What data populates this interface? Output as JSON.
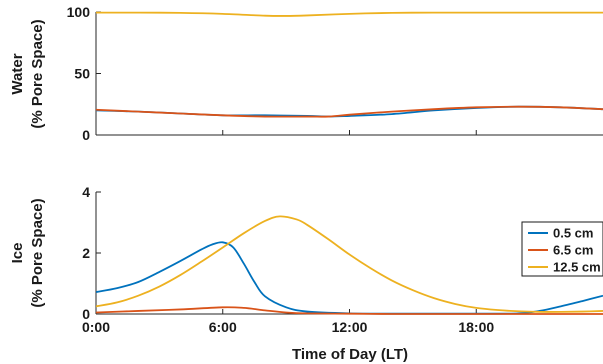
{
  "chart_data": [
    {
      "type": "line",
      "ylabel_line1": "Water",
      "ylabel_line2": "(% Pore Space)",
      "ylim": [
        0,
        100
      ],
      "xlim": [
        0,
        24
      ],
      "yticks": [
        {
          "value": 0,
          "label": "0"
        },
        {
          "value": 50,
          "label": "50"
        },
        {
          "value": 100,
          "label": "100"
        }
      ],
      "series": [
        {
          "key": "s1",
          "color": "#0072BD",
          "x": [
            0,
            2,
            4,
            6,
            8,
            10,
            11,
            12,
            14,
            16,
            18,
            20,
            22,
            24
          ],
          "y": [
            20,
            19,
            17.5,
            16,
            16,
            15.5,
            15,
            15.5,
            17,
            20,
            22,
            23,
            22.5,
            21
          ]
        },
        {
          "key": "s2",
          "color": "#D95319",
          "x": [
            0,
            2,
            4,
            6,
            8,
            10,
            11,
            12,
            14,
            16,
            18,
            20,
            22,
            24
          ],
          "y": [
            20.5,
            19,
            17.5,
            16,
            15,
            15,
            15,
            16.5,
            19,
            21,
            22.5,
            23,
            22.5,
            21
          ]
        },
        {
          "key": "s3",
          "color": "#EDB120",
          "x": [
            0,
            2,
            4,
            6,
            8,
            9,
            10,
            12,
            14,
            16,
            18,
            20,
            22,
            24
          ],
          "y": [
            99.5,
            99.5,
            99.3,
            98.5,
            97,
            96.8,
            97.2,
            98.5,
            99.3,
            99.5,
            99.5,
            99.5,
            99.5,
            99.5
          ]
        }
      ]
    },
    {
      "type": "line",
      "ylabel_line1": "Ice",
      "ylabel_line2": "(% Pore Space)",
      "xlabel": "Time of Day (LT)",
      "ylim": [
        0,
        4
      ],
      "xlim": [
        0,
        24
      ],
      "yticks": [
        {
          "value": 0,
          "label": "0"
        },
        {
          "value": 2,
          "label": "2"
        },
        {
          "value": 4,
          "label": "4"
        }
      ],
      "xticks": [
        {
          "value": 0,
          "label": "0:00"
        },
        {
          "value": 6,
          "label": "6:00"
        },
        {
          "value": 12,
          "label": "12:00"
        },
        {
          "value": 18,
          "label": "18:00"
        }
      ],
      "legend_position": "top-right",
      "series": [
        {
          "key": "s1",
          "name": "0.5 cm",
          "color": "#0072BD",
          "x": [
            0,
            1,
            2,
            3,
            4,
            5,
            5.5,
            6,
            6.5,
            7,
            7.5,
            8,
            9,
            10,
            12,
            14,
            16,
            18,
            20,
            21,
            22,
            23,
            24
          ],
          "y": [
            0.72,
            0.85,
            1.05,
            1.38,
            1.74,
            2.12,
            2.28,
            2.35,
            2.18,
            1.65,
            1.05,
            0.58,
            0.22,
            0.08,
            0.02,
            0.01,
            0.01,
            0.01,
            0.02,
            0.1,
            0.25,
            0.42,
            0.6
          ]
        },
        {
          "key": "s2",
          "name": "6.5 cm",
          "color": "#D95319",
          "x": [
            0,
            2,
            4,
            6,
            7,
            8,
            9,
            10,
            12,
            14,
            16,
            18,
            20,
            22,
            24
          ],
          "y": [
            0.05,
            0.1,
            0.15,
            0.22,
            0.2,
            0.12,
            0.05,
            0.02,
            0.01,
            0.0,
            0.0,
            0.0,
            0.0,
            0.0,
            0.0
          ]
        },
        {
          "key": "s3",
          "name": "12.5 cm",
          "color": "#EDB120",
          "x": [
            0,
            1,
            2,
            3,
            4,
            5,
            6,
            7,
            8,
            8.7,
            9.5,
            10,
            11,
            12,
            13,
            14,
            15,
            16,
            17,
            18,
            19,
            20,
            21,
            22,
            23,
            24
          ],
          "y": [
            0.25,
            0.38,
            0.6,
            0.9,
            1.28,
            1.72,
            2.18,
            2.65,
            3.05,
            3.2,
            3.1,
            2.92,
            2.45,
            1.95,
            1.5,
            1.1,
            0.78,
            0.52,
            0.33,
            0.2,
            0.13,
            0.09,
            0.07,
            0.07,
            0.08,
            0.1
          ]
        }
      ]
    }
  ]
}
